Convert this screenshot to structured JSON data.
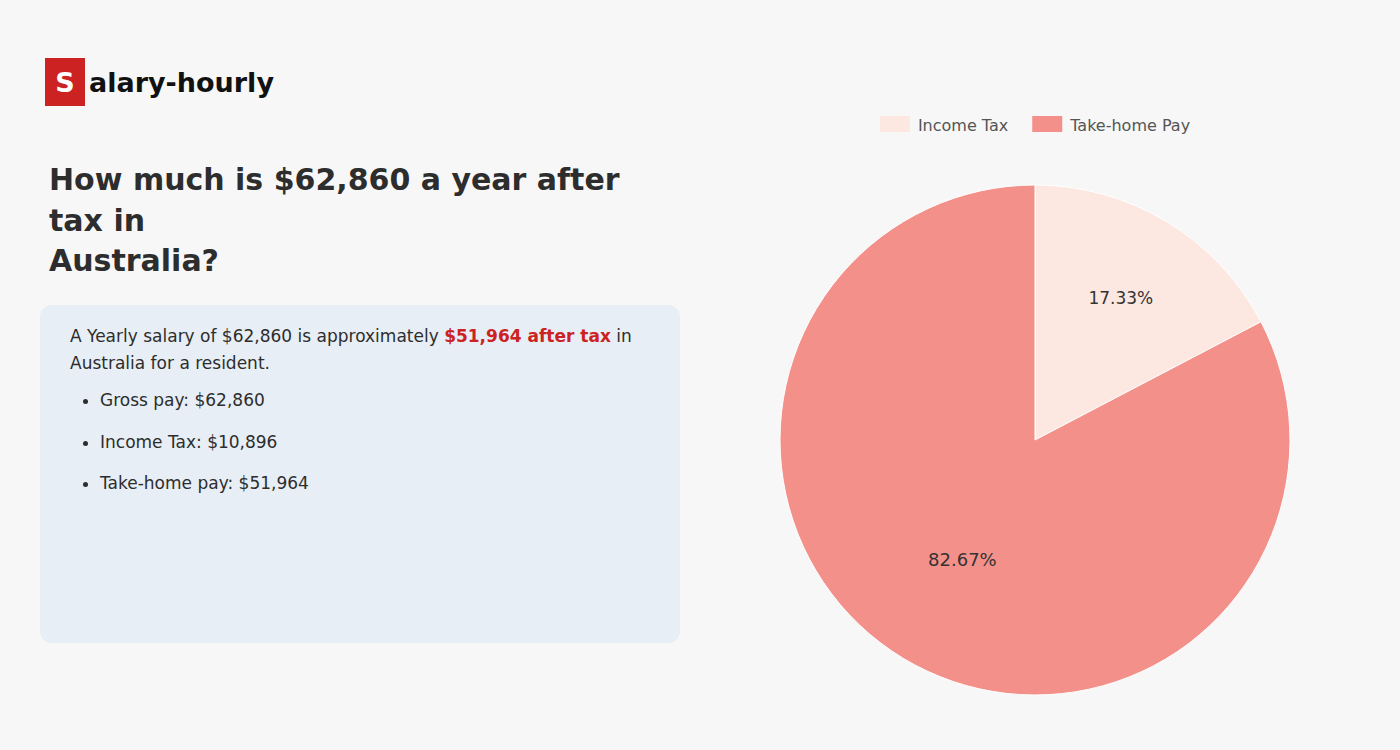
{
  "chart_data": {
    "type": "pie",
    "title": "How much is $62,860 a year after tax in\nAustralia?",
    "annotations": [
      "S",
      "alary-hourly",
      "A Yearly salary of $62,860 is approximately ",
      "$51,964 after tax",
      " in",
      "Australia for a resident.",
      "Gross pay: $62,860",
      "Income Tax: $10,896",
      "Take-home pay: $51,964"
    ],
    "categories": [
      "Income Tax",
      "Take-home Pay"
    ],
    "values": [
      17.33,
      82.67
    ],
    "value_labels": [
      "17.33%",
      "82.67%"
    ],
    "colors": [
      "#fce8e0",
      "#f4908a"
    ],
    "data_labels": true,
    "legend": "top"
  }
}
